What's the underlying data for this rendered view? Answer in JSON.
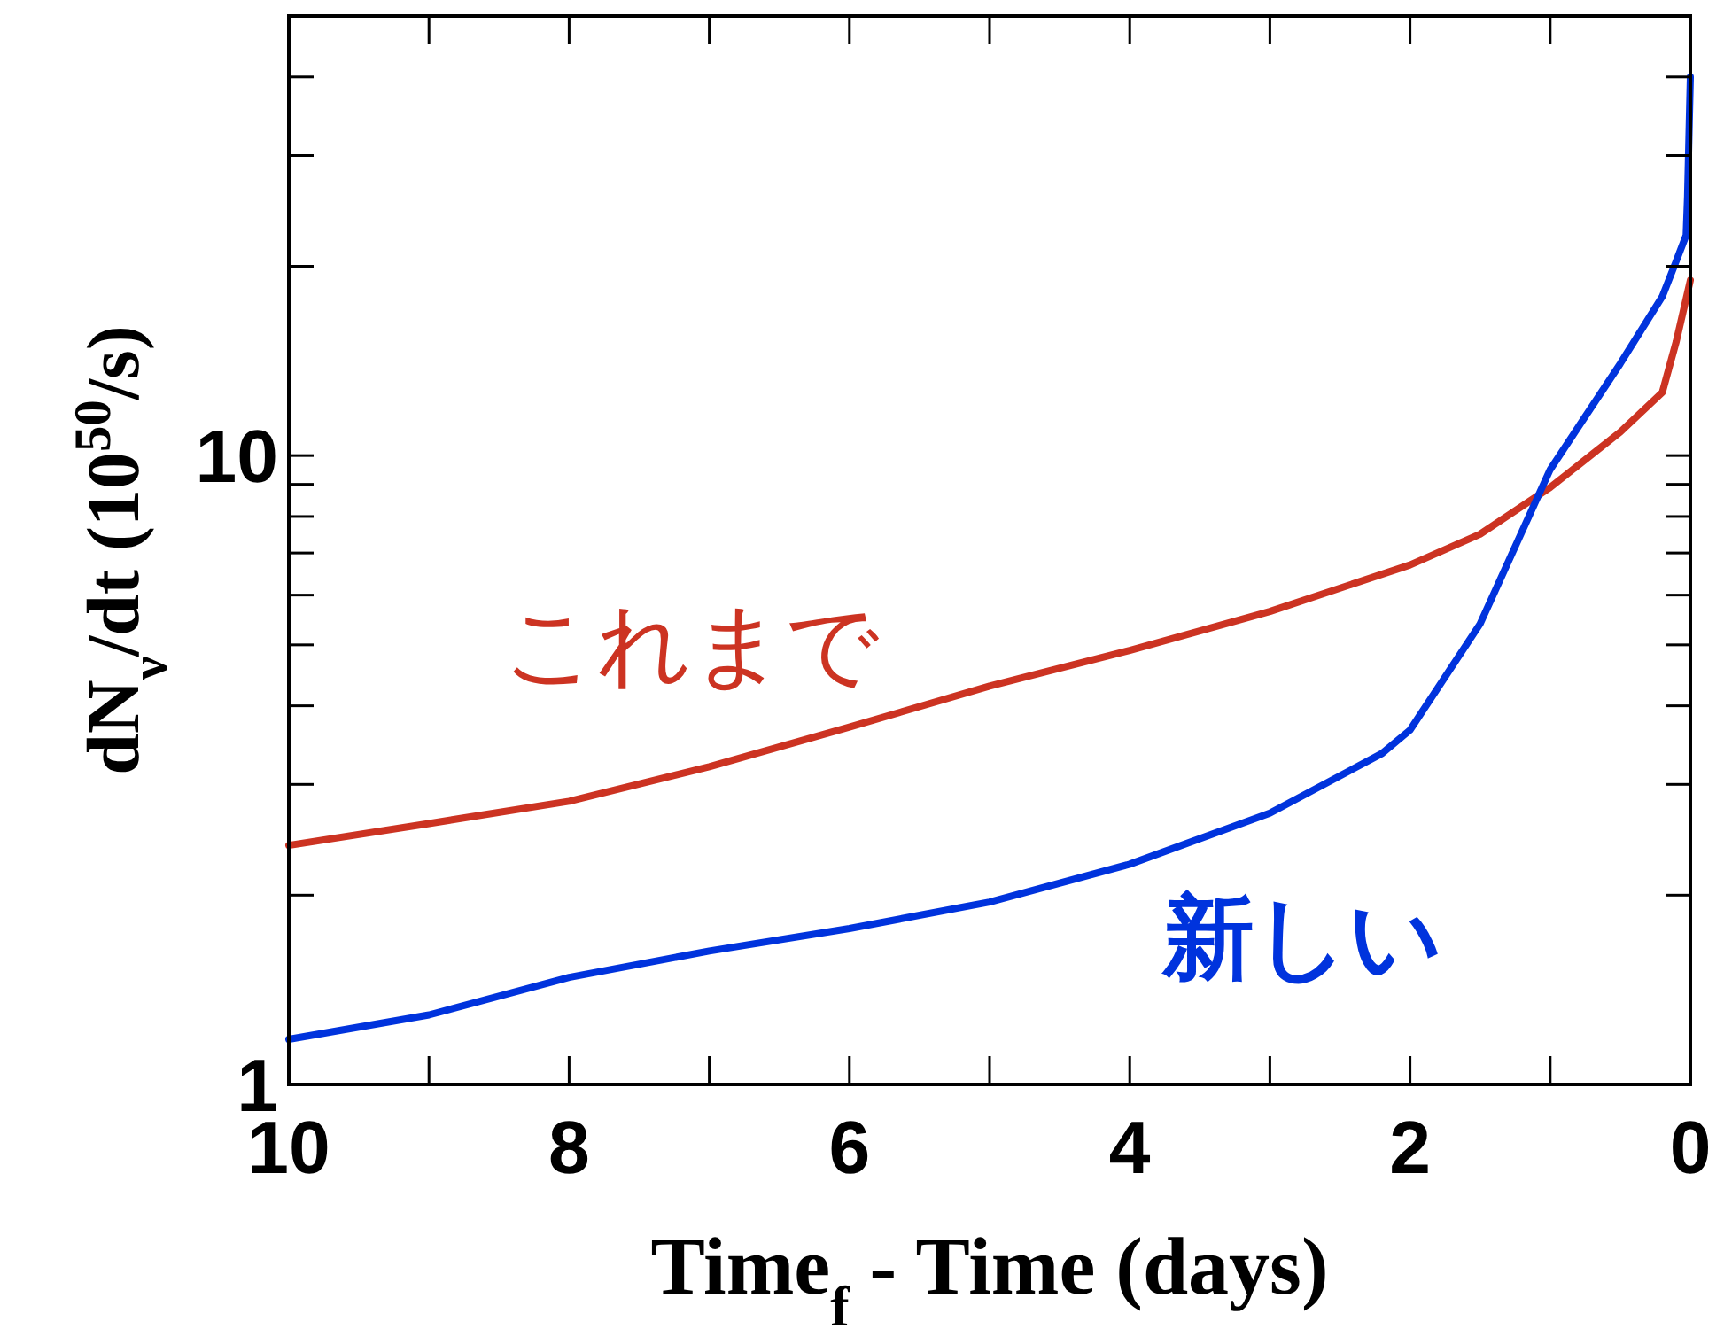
{
  "chart_data": {
    "type": "line",
    "xlabel": "Time$_{f}$ - Time (days)",
    "ylabel": "dN$_{ν}$/dt (10$^{50}$/s)",
    "log": "y",
    "grid": false,
    "marker": "none",
    "line_style": "solid",
    "xlim": [
      10,
      0
    ],
    "ylim": [
      1,
      50
    ],
    "xticks": [
      10,
      {
        "value": 9,
        "label": null
      },
      8,
      {
        "value": 7,
        "label": null
      },
      6,
      {
        "value": 5,
        "label": null
      },
      4,
      {
        "value": 3,
        "label": null
      },
      2,
      {
        "value": 1,
        "label": null
      },
      0
    ],
    "yticks": [
      1,
      {
        "value": 2,
        "label": null
      },
      {
        "value": 3,
        "label": null
      },
      {
        "value": 4,
        "label": null
      },
      {
        "value": 5,
        "label": null
      },
      {
        "value": 6,
        "label": null
      },
      {
        "value": 7,
        "label": null
      },
      {
        "value": 8,
        "label": null
      },
      {
        "value": 9,
        "label": null
      },
      10,
      {
        "value": 20,
        "label": null
      },
      {
        "value": 30,
        "label": null
      },
      {
        "value": 40,
        "label": null
      }
    ],
    "series": [
      {
        "name": "これまで",
        "color": "#cc3322",
        "x": [
          10,
          9,
          8,
          7,
          6,
          5,
          4,
          3,
          2,
          1.5,
          1,
          0.5,
          0.2,
          0.1,
          0
        ],
        "values": [
          2.4,
          2.6,
          2.82,
          3.2,
          3.7,
          4.3,
          4.9,
          5.65,
          6.7,
          7.5,
          8.9,
          10.9,
          12.6,
          15.2,
          19
        ]
      },
      {
        "name": "新しい",
        "color": "#0033dd",
        "x": [
          10,
          9,
          8,
          7,
          6,
          5,
          4,
          3,
          2.2,
          2,
          1.5,
          1,
          0.5,
          0.2,
          0.1,
          0.03,
          0.02,
          0
        ],
        "values": [
          1.18,
          1.29,
          1.48,
          1.63,
          1.77,
          1.95,
          2.24,
          2.7,
          3.36,
          3.66,
          5.4,
          9.5,
          14,
          17.9,
          20.4,
          22.4,
          25.8,
          40
        ]
      }
    ]
  }
}
